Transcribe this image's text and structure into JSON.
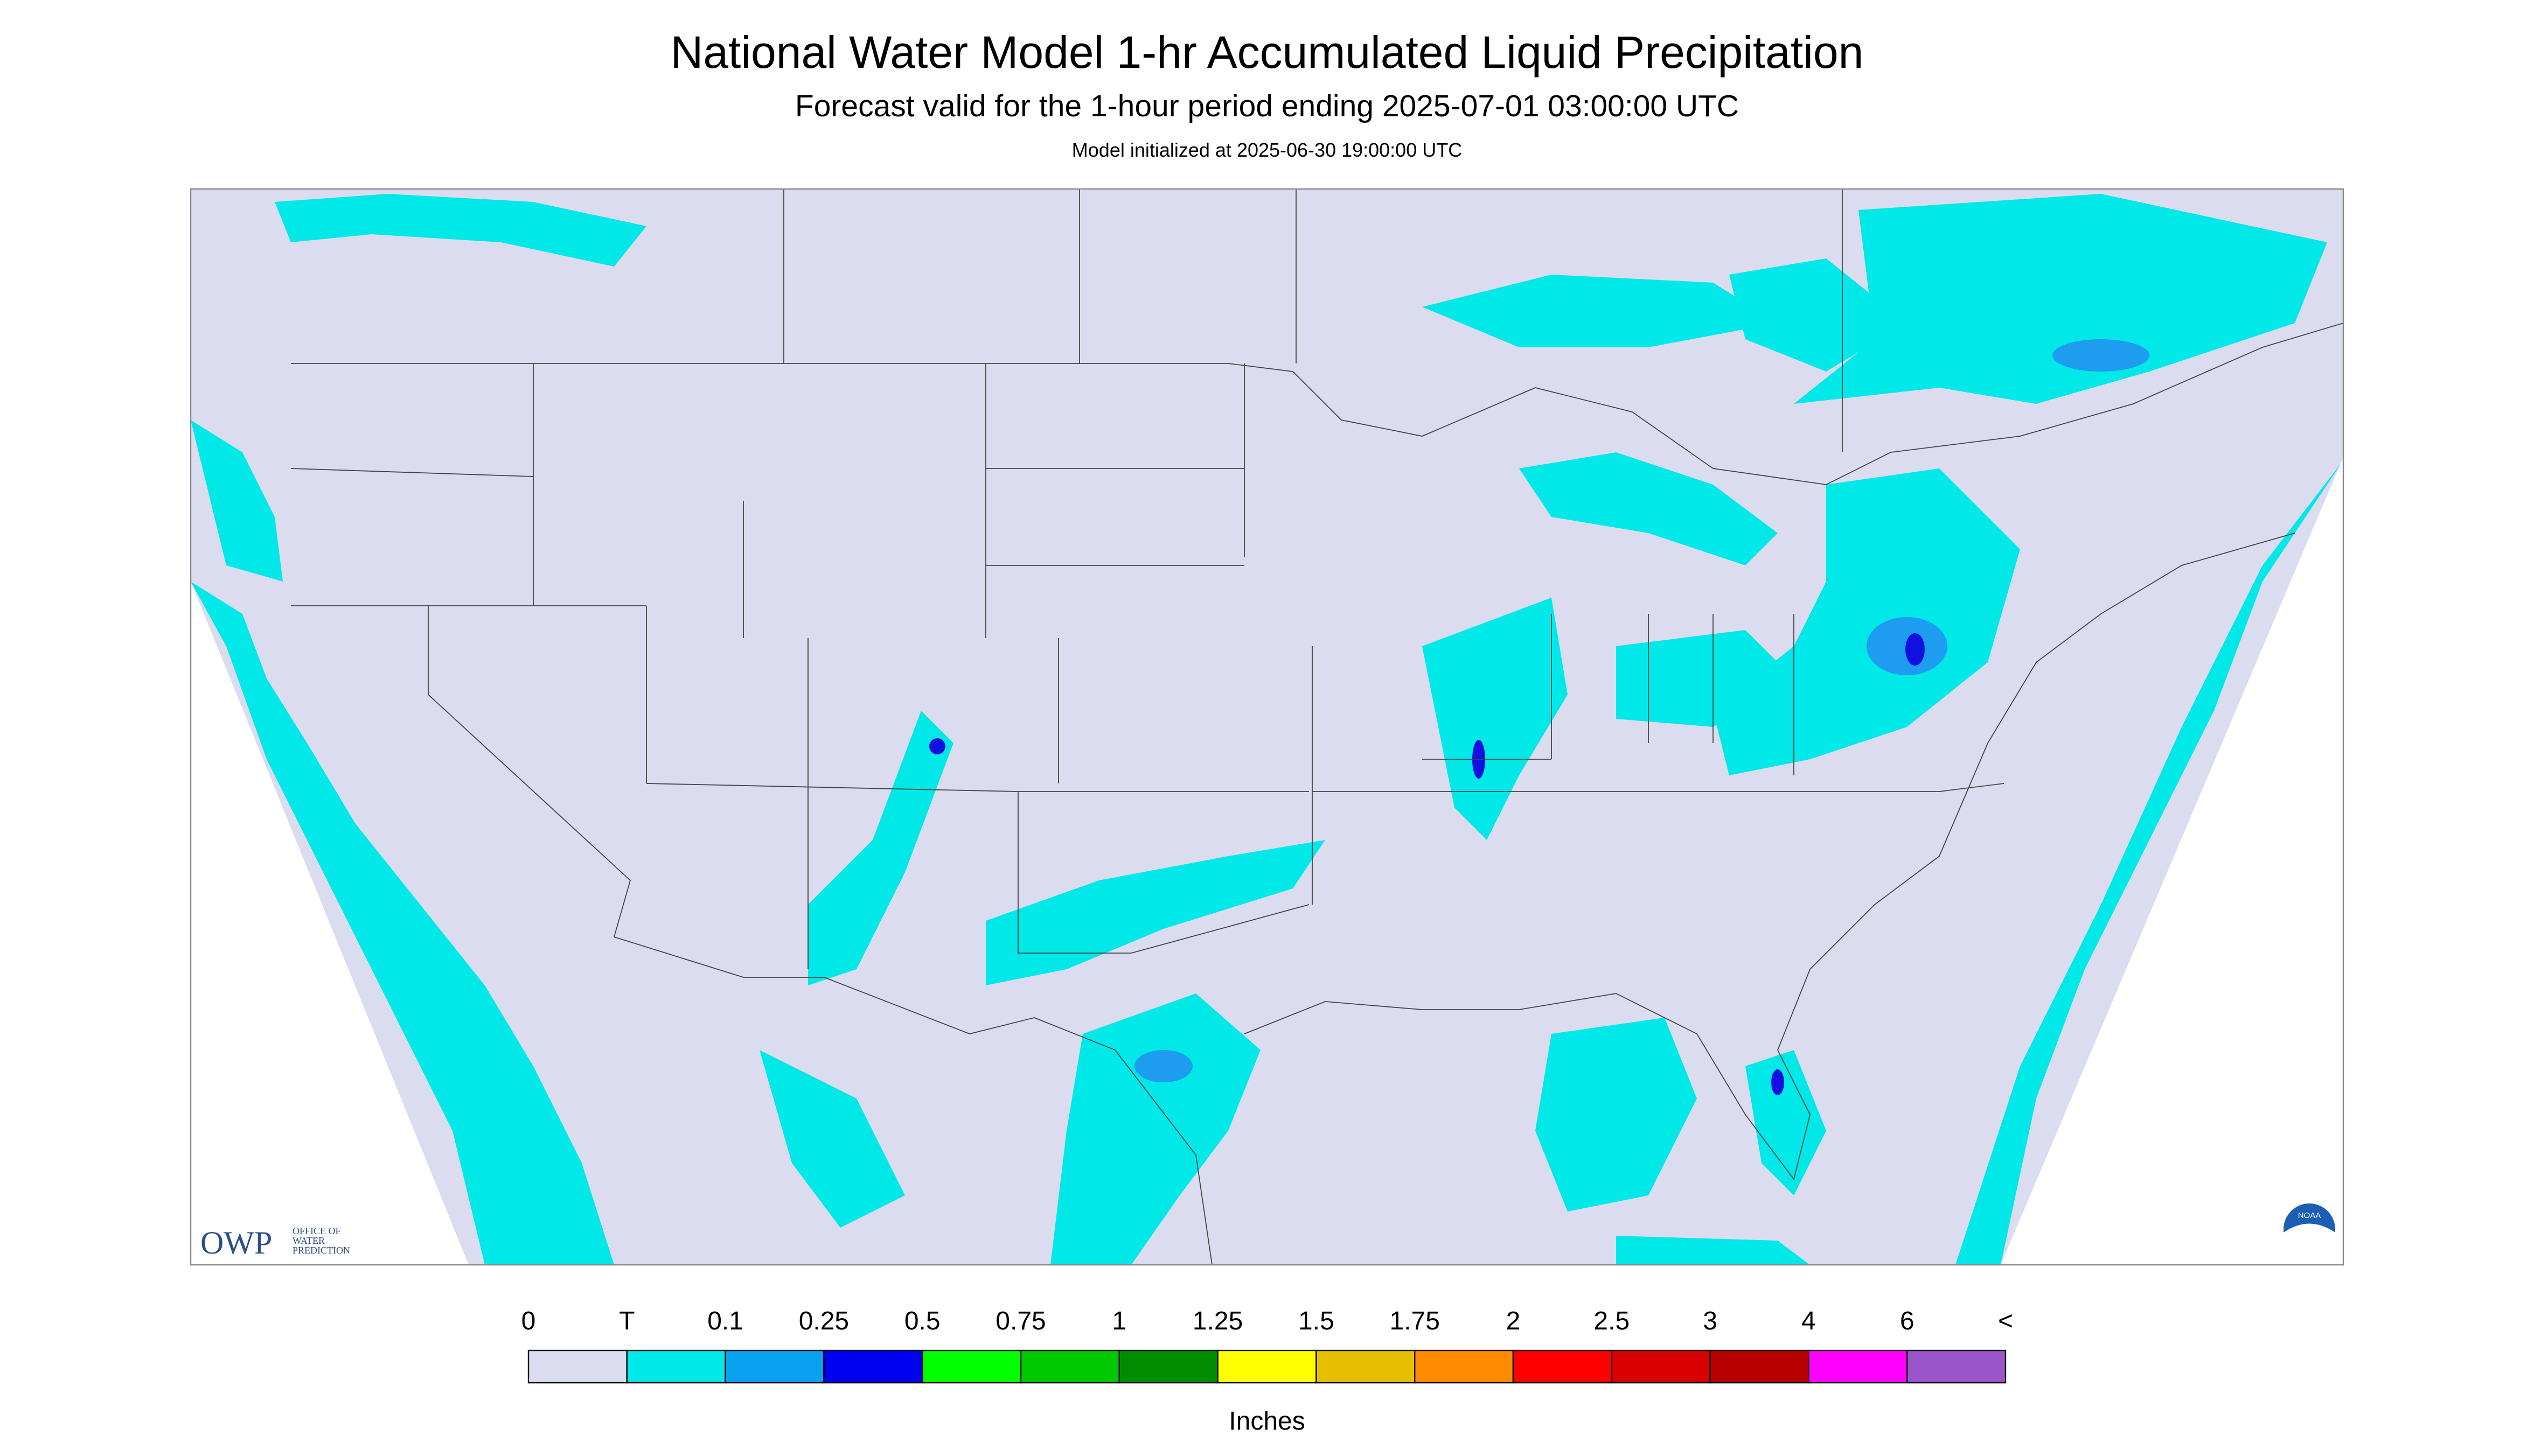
{
  "header": {
    "title": "National Water Model 1-hr Accumulated Liquid Precipitation",
    "subtitle": "Forecast valid for the 1-hour period ending 2025-07-01 03:00:00 UTC",
    "init": "Model initialized at 2025-06-30 19:00:00 UTC"
  },
  "logos": {
    "owp": "OWP",
    "owp_text": [
      "OFFICE OF",
      "WATER",
      "PREDICTION"
    ],
    "noaa": "NOAA"
  },
  "legend": {
    "labels": [
      "0",
      "T",
      "0.1",
      "0.25",
      "0.5",
      "0.75",
      "1",
      "1.25",
      "1.5",
      "1.75",
      "2",
      "2.5",
      "3",
      "4",
      "6",
      "<"
    ],
    "colors": [
      "#dcdcf0",
      "#00e8e8",
      "#0aa0f0",
      "#0000f0",
      "#00ff00",
      "#00c800",
      "#008c00",
      "#ffff00",
      "#e6c000",
      "#ff8c00",
      "#ff0000",
      "#d80000",
      "#b80000",
      "#ff00ff",
      "#9955c9"
    ],
    "unit": "Inches"
  }
}
